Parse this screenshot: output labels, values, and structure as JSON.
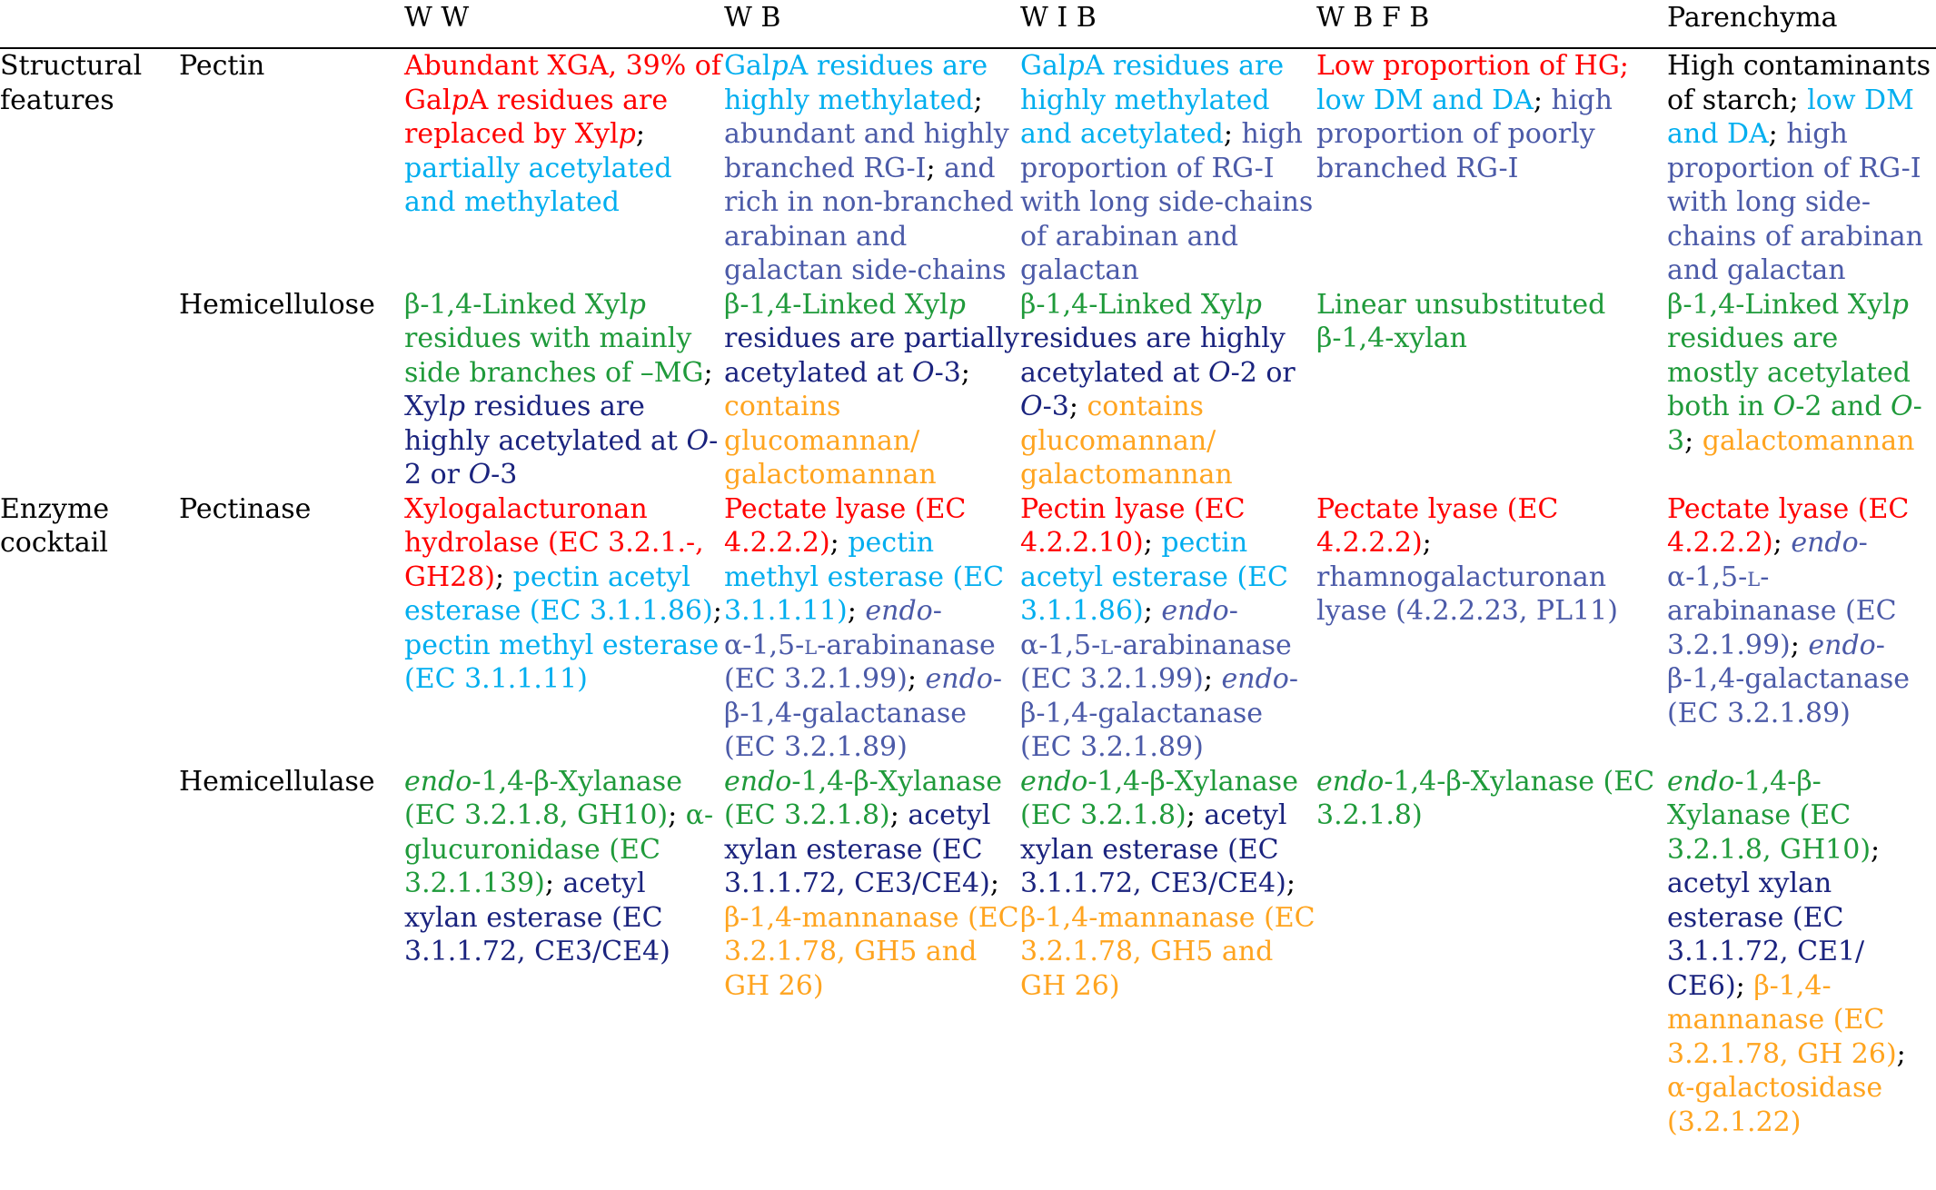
{
  "header": {
    "blank1": "",
    "blank2": "",
    "ww": "W W",
    "wb": "W B",
    "wib": "W I B",
    "wbfb": "W B F B",
    "parenchyma": "Parenchyma"
  },
  "colors": {
    "red": "#ff0000",
    "cyan": "#00aeef",
    "slate": "#4b5aa8",
    "green": "#1f9a3a",
    "navy": "#1a237e",
    "orange": "#ffa41f"
  },
  "rows": [
    {
      "group": "Structural features",
      "label": "Pectin",
      "cells": [
        [
          {
            "t": "Abundant XGA, 39% of Gal",
            "c": "red"
          },
          {
            "t": "p",
            "c": "red",
            "i": true
          },
          {
            "t": "A residues are replaced by Xyl",
            "c": "red"
          },
          {
            "t": "p",
            "c": "red",
            "i": true
          },
          {
            "t": "; ",
            "c": "black"
          },
          {
            "t": "partially acetylated and methylated",
            "c": "cyan"
          }
        ],
        [
          {
            "t": "Gal",
            "c": "cyan"
          },
          {
            "t": "p",
            "c": "cyan",
            "i": true
          },
          {
            "t": "A residues are highly methylated",
            "c": "cyan"
          },
          {
            "t": "; ",
            "c": "black"
          },
          {
            "t": "abundant and highly branched RG-I",
            "c": "slate"
          },
          {
            "t": "; ",
            "c": "black"
          },
          {
            "t": "and rich in non-branched arabinan and galactan side-chains",
            "c": "slate"
          }
        ],
        [
          {
            "t": "Gal",
            "c": "cyan"
          },
          {
            "t": "p",
            "c": "cyan",
            "i": true
          },
          {
            "t": "A residues are highly methylated and acetylated",
            "c": "cyan"
          },
          {
            "t": "; ",
            "c": "black"
          },
          {
            "t": "high proportion of RG-I with long side-chains of arabinan and galactan",
            "c": "slate"
          }
        ],
        [
          {
            "t": "Low proportion of HG;",
            "c": "red"
          },
          {
            "t": " low DM and DA",
            "c": "cyan"
          },
          {
            "t": "; ",
            "c": "black"
          },
          {
            "t": "high proportion of poorly branched RG-I",
            "c": "slate"
          }
        ],
        [
          {
            "t": "High contaminants of starch; ",
            "c": "black"
          },
          {
            "t": "low DM and DA",
            "c": "cyan"
          },
          {
            "t": "; ",
            "c": "black"
          },
          {
            "t": "high proportion of RG-I with long side-chains of arabinan and galactan",
            "c": "slate"
          }
        ]
      ]
    },
    {
      "group": "",
      "label": "Hemicellulose",
      "cells": [
        [
          {
            "t": "β-1,4-Linked Xyl",
            "c": "green"
          },
          {
            "t": "p",
            "c": "green",
            "i": true
          },
          {
            "t": " residues with mainly side branches of –MG",
            "c": "green"
          },
          {
            "t": "; ",
            "c": "black"
          },
          {
            "t": "Xyl",
            "c": "navy"
          },
          {
            "t": "p",
            "c": "navy",
            "i": true
          },
          {
            "t": " residues are highly acetylated at ",
            "c": "navy"
          },
          {
            "t": "O",
            "c": "navy",
            "i": true
          },
          {
            "t": "-2 or ",
            "c": "navy"
          },
          {
            "t": "O",
            "c": "navy",
            "i": true
          },
          {
            "t": "-3",
            "c": "navy"
          }
        ],
        [
          {
            "t": "β-1,4-Linked Xyl",
            "c": "green"
          },
          {
            "t": "p",
            "c": "green",
            "i": true
          },
          {
            "t": " residues are partially acetylated at ",
            "c": "navy"
          },
          {
            "t": "O",
            "c": "navy",
            "i": true
          },
          {
            "t": "-3",
            "c": "navy"
          },
          {
            "t": "; ",
            "c": "black"
          },
          {
            "t": "contains glucomannan/ galactomannan",
            "c": "orange"
          }
        ],
        [
          {
            "t": "β-1,4-Linked Xyl",
            "c": "green"
          },
          {
            "t": "p",
            "c": "green",
            "i": true
          },
          {
            "t": " residues are highly acetylated at ",
            "c": "navy"
          },
          {
            "t": "O",
            "c": "navy",
            "i": true
          },
          {
            "t": "-2 or ",
            "c": "navy"
          },
          {
            "t": "O",
            "c": "navy",
            "i": true
          },
          {
            "t": "-3",
            "c": "navy"
          },
          {
            "t": "; ",
            "c": "black"
          },
          {
            "t": "contains glucomannan/ galactomannan",
            "c": "orange"
          }
        ],
        [
          {
            "t": "Linear unsubstituted β-1,4-xylan",
            "c": "green"
          }
        ],
        [
          {
            "t": "β-1,4-Linked Xyl",
            "c": "green"
          },
          {
            "t": "p",
            "c": "green",
            "i": true
          },
          {
            "t": " residues are mostly acetylated both in ",
            "c": "green"
          },
          {
            "t": "O",
            "c": "green",
            "i": true
          },
          {
            "t": "-2 and ",
            "c": "green"
          },
          {
            "t": "O",
            "c": "green",
            "i": true
          },
          {
            "t": "-3",
            "c": "green"
          },
          {
            "t": "; ",
            "c": "black"
          },
          {
            "t": "galactomannan",
            "c": "orange"
          }
        ]
      ]
    },
    {
      "group": "Enzyme cocktail",
      "label": "Pectinase",
      "cells": [
        [
          {
            "t": "Xylogalacturonan hydrolase (EC 3.2.1.-, GH28)",
            "c": "red"
          },
          {
            "t": "; ",
            "c": "black"
          },
          {
            "t": "pectin acetyl esterase (EC 3.1.1.86)",
            "c": "cyan"
          },
          {
            "t": "; ",
            "c": "black"
          },
          {
            "t": "pectin methyl esterase (EC 3.1.1.11)",
            "c": "cyan"
          }
        ],
        [
          {
            "t": "Pectate lyase (EC 4.2.2.2)",
            "c": "red"
          },
          {
            "t": "; ",
            "c": "black"
          },
          {
            "t": "pectin methyl esterase (EC 3.1.1.11)",
            "c": "cyan"
          },
          {
            "t": "; ",
            "c": "black"
          },
          {
            "t": "endo",
            "c": "slate",
            "i": true
          },
          {
            "t": "-α-1,5-",
            "c": "slate"
          },
          {
            "t": "l",
            "c": "slate",
            "sc": true
          },
          {
            "t": "-arabinanase (EC 3.2.1.99)",
            "c": "slate"
          },
          {
            "t": "; ",
            "c": "black"
          },
          {
            "t": "endo",
            "c": "slate",
            "i": true
          },
          {
            "t": "-β-1,4-galactanase (EC 3.2.1.89)",
            "c": "slate"
          }
        ],
        [
          {
            "t": "Pectin lyase (EC 4.2.2.10)",
            "c": "red"
          },
          {
            "t": "; ",
            "c": "black"
          },
          {
            "t": "pectin acetyl esterase (EC 3.1.1.86)",
            "c": "cyan"
          },
          {
            "t": "; ",
            "c": "black"
          },
          {
            "t": "endo",
            "c": "slate",
            "i": true
          },
          {
            "t": "-α-1,5-",
            "c": "slate"
          },
          {
            "t": "l",
            "c": "slate",
            "sc": true
          },
          {
            "t": "-arabinanase (EC 3.2.1.99)",
            "c": "slate"
          },
          {
            "t": "; ",
            "c": "black"
          },
          {
            "t": "endo",
            "c": "slate",
            "i": true
          },
          {
            "t": "-β-1,4-galactanase (EC 3.2.1.89)",
            "c": "slate"
          }
        ],
        [
          {
            "t": "Pectate lyase (EC 4.2.2.2)",
            "c": "red"
          },
          {
            "t": "; ",
            "c": "black"
          },
          {
            "t": "rhamnogalacturonan lyase (4.2.2.23, PL11)",
            "c": "slate"
          }
        ],
        [
          {
            "t": "Pectate lyase (EC 4.2.2.2)",
            "c": "red"
          },
          {
            "t": "; ",
            "c": "black"
          },
          {
            "t": "endo",
            "c": "slate",
            "i": true
          },
          {
            "t": "-α-1,5-",
            "c": "slate"
          },
          {
            "t": "l",
            "c": "slate",
            "sc": true
          },
          {
            "t": "-arabinanase (EC 3.2.1.99)",
            "c": "slate"
          },
          {
            "t": "; ",
            "c": "black"
          },
          {
            "t": "endo",
            "c": "slate",
            "i": true
          },
          {
            "t": "-β-1,4-galactanase (EC 3.2.1.89)",
            "c": "slate"
          }
        ]
      ]
    },
    {
      "group": "",
      "label": "Hemicellulase",
      "cells": [
        [
          {
            "t": "endo",
            "c": "green",
            "i": true
          },
          {
            "t": "-1,4-β-Xylanase (EC 3.2.1.8, GH10)",
            "c": "green"
          },
          {
            "t": "; ",
            "c": "black"
          },
          {
            "t": "α-glucuronidase (EC 3.2.1.139)",
            "c": "green"
          },
          {
            "t": "; ",
            "c": "black"
          },
          {
            "t": "acetyl xylan esterase (EC 3.1.1.72, CE3/CE4)",
            "c": "navy"
          }
        ],
        [
          {
            "t": "endo",
            "c": "green",
            "i": true
          },
          {
            "t": "-1,4-β-Xylanase (EC 3.2.1.8)",
            "c": "green"
          },
          {
            "t": "; ",
            "c": "black"
          },
          {
            "t": "acetyl xylan esterase (EC 3.1.1.72, CE3/CE4)",
            "c": "navy"
          },
          {
            "t": "; ",
            "c": "black"
          },
          {
            "t": "β-1,4-mannanase (EC 3.2.1.78, GH5 and GH 26)",
            "c": "orange"
          }
        ],
        [
          {
            "t": "endo",
            "c": "green",
            "i": true
          },
          {
            "t": "-1,4-β-Xylanase (EC 3.2.1.8)",
            "c": "green"
          },
          {
            "t": "; ",
            "c": "black"
          },
          {
            "t": "acetyl xylan esterase (EC 3.1.1.72, CE3/CE4)",
            "c": "navy"
          },
          {
            "t": "; ",
            "c": "black"
          },
          {
            "t": "β-1,4-mannanase (EC 3.2.1.78, GH5 and GH 26)",
            "c": "orange"
          }
        ],
        [
          {
            "t": "endo",
            "c": "green",
            "i": true
          },
          {
            "t": "-1,4-β-Xylanase (EC 3.2.1.8)",
            "c": "green"
          }
        ],
        [
          {
            "t": "endo",
            "c": "green",
            "i": true
          },
          {
            "t": "-1,4-β-Xylanase (EC 3.2.1.8, GH10)",
            "c": "green"
          },
          {
            "t": "; ",
            "c": "black"
          },
          {
            "t": "acetyl xylan esterase (EC 3.1.1.72, CE1/ CE6)",
            "c": "navy"
          },
          {
            "t": "; ",
            "c": "black"
          },
          {
            "t": "β-1,4-mannanase (EC 3.2.1.78, GH 26)",
            "c": "orange"
          },
          {
            "t": "; ",
            "c": "black"
          },
          {
            "t": "α-galactosidase (3.2.1.22)",
            "c": "orange"
          }
        ]
      ]
    }
  ]
}
